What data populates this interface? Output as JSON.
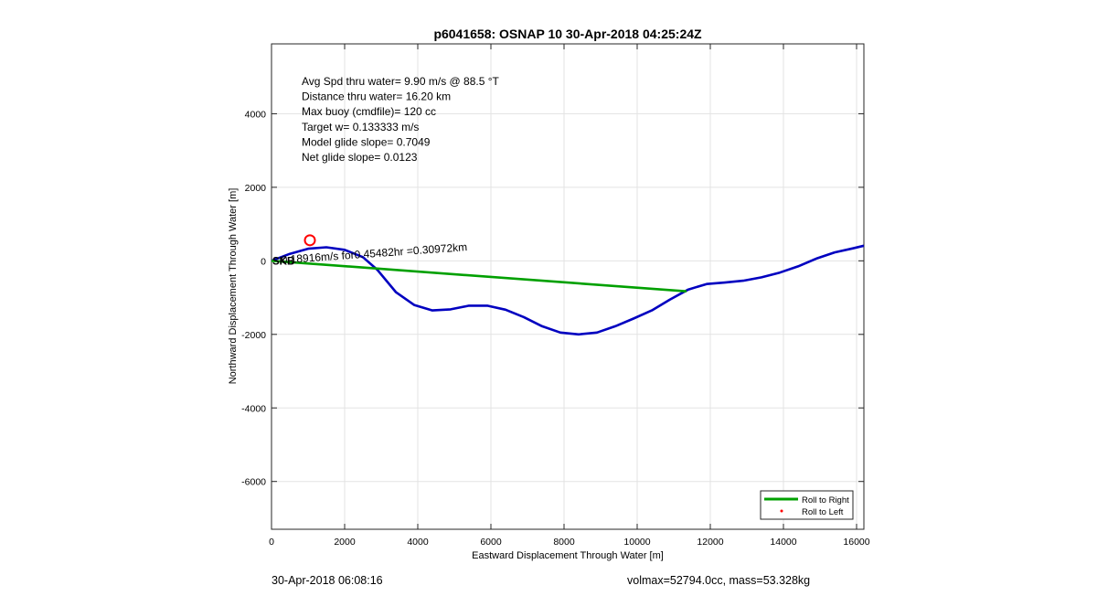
{
  "chart_data": {
    "type": "line",
    "title": "p6041658: OSNAP 10 30-Apr-2018 04:25:24Z",
    "xlabel": "Eastward Displacement Through Water [m]",
    "ylabel": "Northward Displacement Through Water [m]",
    "xlim": [
      0,
      16200
    ],
    "ylim": [
      -7300,
      5900
    ],
    "xticks": [
      0,
      2000,
      4000,
      6000,
      8000,
      10000,
      12000,
      14000,
      16000
    ],
    "yticks": [
      -6000,
      -4000,
      -2000,
      0,
      2000,
      4000
    ],
    "grid": true,
    "legend_position": "bottom-right",
    "legend": [
      {
        "label": "Roll to Right",
        "color": "#00a000",
        "kind": "line"
      },
      {
        "label": "Roll to Left",
        "color": "#ff0000",
        "kind": "dot"
      }
    ],
    "annotations": [
      "Avg Spd thru water=  9.90 m/s @  88.5 °T",
      "Distance thru water= 16.20 km",
      "Max buoy (cmdfile)= 120 cc",
      "Target w= 0.133333 m/s",
      "Model glide slope= 0.7049",
      "Net glide slope= 0.0123"
    ],
    "vector_label": "0.18916m/s for0.45482hr =0.30972km",
    "overlap_label": "SKB",
    "marker": {
      "x": 1050,
      "y": 560,
      "color": "#ff0000"
    },
    "series": [
      {
        "name": "displacement",
        "color": "#0000c0",
        "points": [
          [
            0,
            0
          ],
          [
            500,
            190
          ],
          [
            1000,
            330
          ],
          [
            1500,
            370
          ],
          [
            2000,
            300
          ],
          [
            2500,
            100
          ],
          [
            2900,
            -250
          ],
          [
            3400,
            -850
          ],
          [
            3900,
            -1200
          ],
          [
            4400,
            -1350
          ],
          [
            4900,
            -1320
          ],
          [
            5400,
            -1220
          ],
          [
            5900,
            -1220
          ],
          [
            6400,
            -1330
          ],
          [
            6900,
            -1530
          ],
          [
            7400,
            -1780
          ],
          [
            7900,
            -1950
          ],
          [
            8400,
            -2000
          ],
          [
            8900,
            -1950
          ],
          [
            9400,
            -1780
          ],
          [
            9900,
            -1570
          ],
          [
            10400,
            -1350
          ],
          [
            10900,
            -1050
          ],
          [
            11400,
            -780
          ],
          [
            11900,
            -630
          ],
          [
            12400,
            -590
          ],
          [
            12900,
            -540
          ],
          [
            13400,
            -450
          ],
          [
            13900,
            -320
          ],
          [
            14400,
            -150
          ],
          [
            14900,
            60
          ],
          [
            15400,
            230
          ],
          [
            15900,
            340
          ],
          [
            16200,
            410
          ]
        ]
      },
      {
        "name": "Roll to Right",
        "color": "#00a000",
        "points": [
          [
            0,
            0
          ],
          [
            11350,
            -830
          ]
        ]
      }
    ]
  },
  "footer": {
    "left": "30-Apr-2018 06:08:16",
    "right": "volmax=52794.0cc, mass=53.328kg"
  }
}
